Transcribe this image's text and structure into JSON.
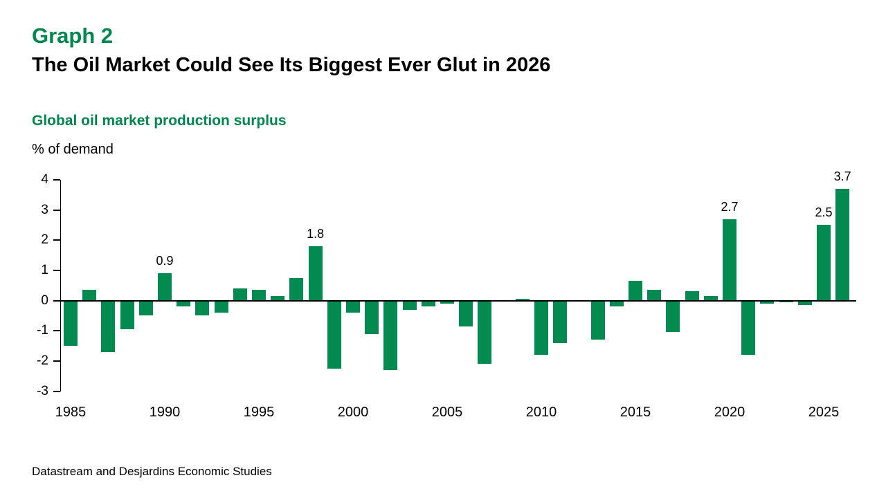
{
  "header": {
    "graph_label": "Graph 2",
    "title": "The Oil Market Could See Its Biggest Ever Glut in 2026",
    "chart_heading": "Global oil market production surplus",
    "unit_label": "% of demand"
  },
  "footer": {
    "source": "Datastream and Desjardins Economic Studies"
  },
  "colors": {
    "heading_green": "#00874E",
    "bar_green": "#028A50",
    "axis_black": "#000000"
  },
  "chart_data": {
    "type": "bar",
    "title": "Global oil market production surplus",
    "xlabel": "",
    "ylabel": "% of demand",
    "ylim": [
      -3,
      4
    ],
    "yticks": [
      4,
      3,
      2,
      1,
      0,
      -1,
      -2,
      -3
    ],
    "xtick_labels": [
      "1985",
      "1990",
      "1995",
      "2000",
      "2005",
      "2010",
      "2015",
      "2020",
      "2025"
    ],
    "grid": false,
    "legend": false,
    "bar_color": "#028A50",
    "years": [
      1985,
      1986,
      1987,
      1988,
      1989,
      1990,
      1991,
      1992,
      1993,
      1994,
      1995,
      1996,
      1997,
      1998,
      1999,
      2000,
      2001,
      2002,
      2003,
      2004,
      2005,
      2006,
      2007,
      2008,
      2009,
      2010,
      2011,
      2012,
      2013,
      2014,
      2015,
      2016,
      2017,
      2018,
      2019,
      2020,
      2021,
      2022,
      2023,
      2024,
      2025,
      2026
    ],
    "values": [
      -1.5,
      0.35,
      -1.7,
      -0.95,
      -0.5,
      0.9,
      -0.2,
      -0.5,
      -0.4,
      0.4,
      0.35,
      0.15,
      0.75,
      1.8,
      -2.25,
      -0.4,
      -1.1,
      -2.3,
      -0.3,
      -0.2,
      -0.1,
      -0.85,
      -2.1,
      0.0,
      0.05,
      -1.8,
      -1.4,
      -0.03,
      -1.3,
      -0.2,
      0.65,
      0.35,
      -1.05,
      0.3,
      0.15,
      2.7,
      -1.8,
      -0.1,
      -0.05,
      -0.15,
      2.5,
      3.7
    ],
    "data_labels": {
      "1990": "0.9",
      "1998": "1.8",
      "2020": "2.7",
      "2025": "2.5",
      "2026": "3.7"
    }
  }
}
